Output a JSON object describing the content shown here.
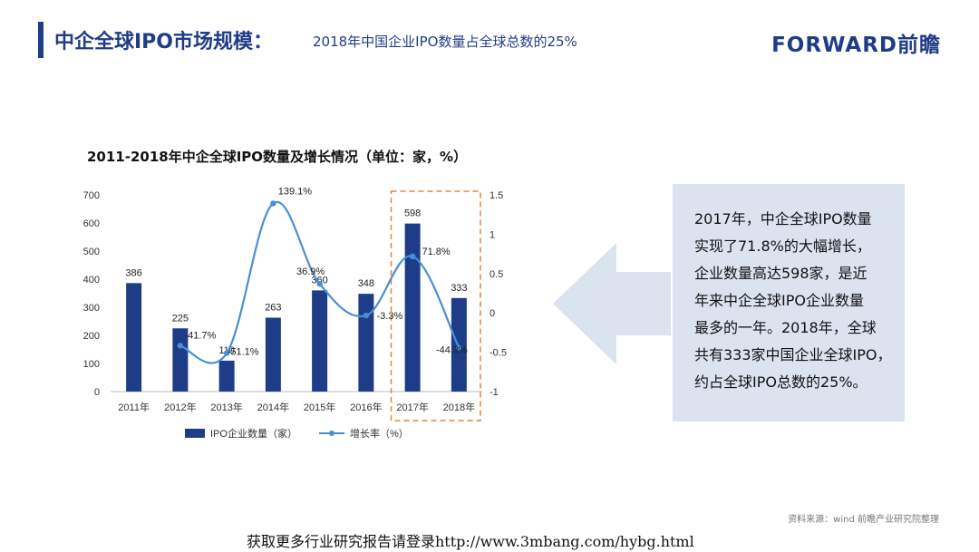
{
  "header": {
    "title": "中企全球IPO市场规模：",
    "subtitle": "2018年中国企业IPO数量占全球总数的25%",
    "brand": "FORWARD前瞻"
  },
  "chart_data": {
    "type": "bar+line",
    "title": "2011-2018年中企全球IPO数量及增长情况（单位：家，%）",
    "categories": [
      "2011年",
      "2012年",
      "2013年",
      "2014年",
      "2015年",
      "2016年",
      "2017年",
      "2018年"
    ],
    "series": [
      {
        "name": "IPO企业数量（家）",
        "type": "bar",
        "axis": "left",
        "values": [
          386,
          225,
          110,
          263,
          360,
          348,
          598,
          333
        ],
        "labels": [
          "386",
          "225",
          "110",
          "263",
          "360",
          "348",
          "598",
          "333"
        ],
        "color": "#1f3c88"
      },
      {
        "name": "增长率（%）",
        "type": "line",
        "axis": "right",
        "values": [
          null,
          -0.417,
          -0.511,
          1.391,
          0.369,
          -0.033,
          0.718,
          -0.443
        ],
        "labels": [
          "",
          "-41.7%",
          "-51.1%",
          "139.1%",
          "36.9%",
          "-3.3%",
          "71.8%",
          "-44.3%"
        ],
        "color": "#4a8fd4"
      }
    ],
    "y_left": {
      "min": 0,
      "max": 700,
      "ticks": [
        "0",
        "100",
        "200",
        "300",
        "400",
        "500",
        "600",
        "700"
      ]
    },
    "y_right": {
      "min": -1,
      "max": 1.5,
      "ticks": [
        "-1",
        "-0.5",
        "0",
        "0.5",
        "1",
        "1.5"
      ]
    },
    "highlight_categories": [
      "2017年",
      "2018年"
    ],
    "highlight_color": "#e8833a",
    "legend_position": "bottom",
    "grid": false
  },
  "callout": {
    "lines": [
      "2017年，中企全球IPO数量",
      "实现了71.8%的大幅增长，",
      "企业数量高达598家，是近",
      "年来中企全球IPO企业数量",
      "最多的一年。2018年，全球",
      "共有333家中国企业全球IPO，",
      "约占全球IPO总数的25%。"
    ]
  },
  "source": "资料来源：wind 前瞻产业研究院整理",
  "footer": "获取更多行业研究报告请登录http://www.3mbang.com/hybg.html"
}
